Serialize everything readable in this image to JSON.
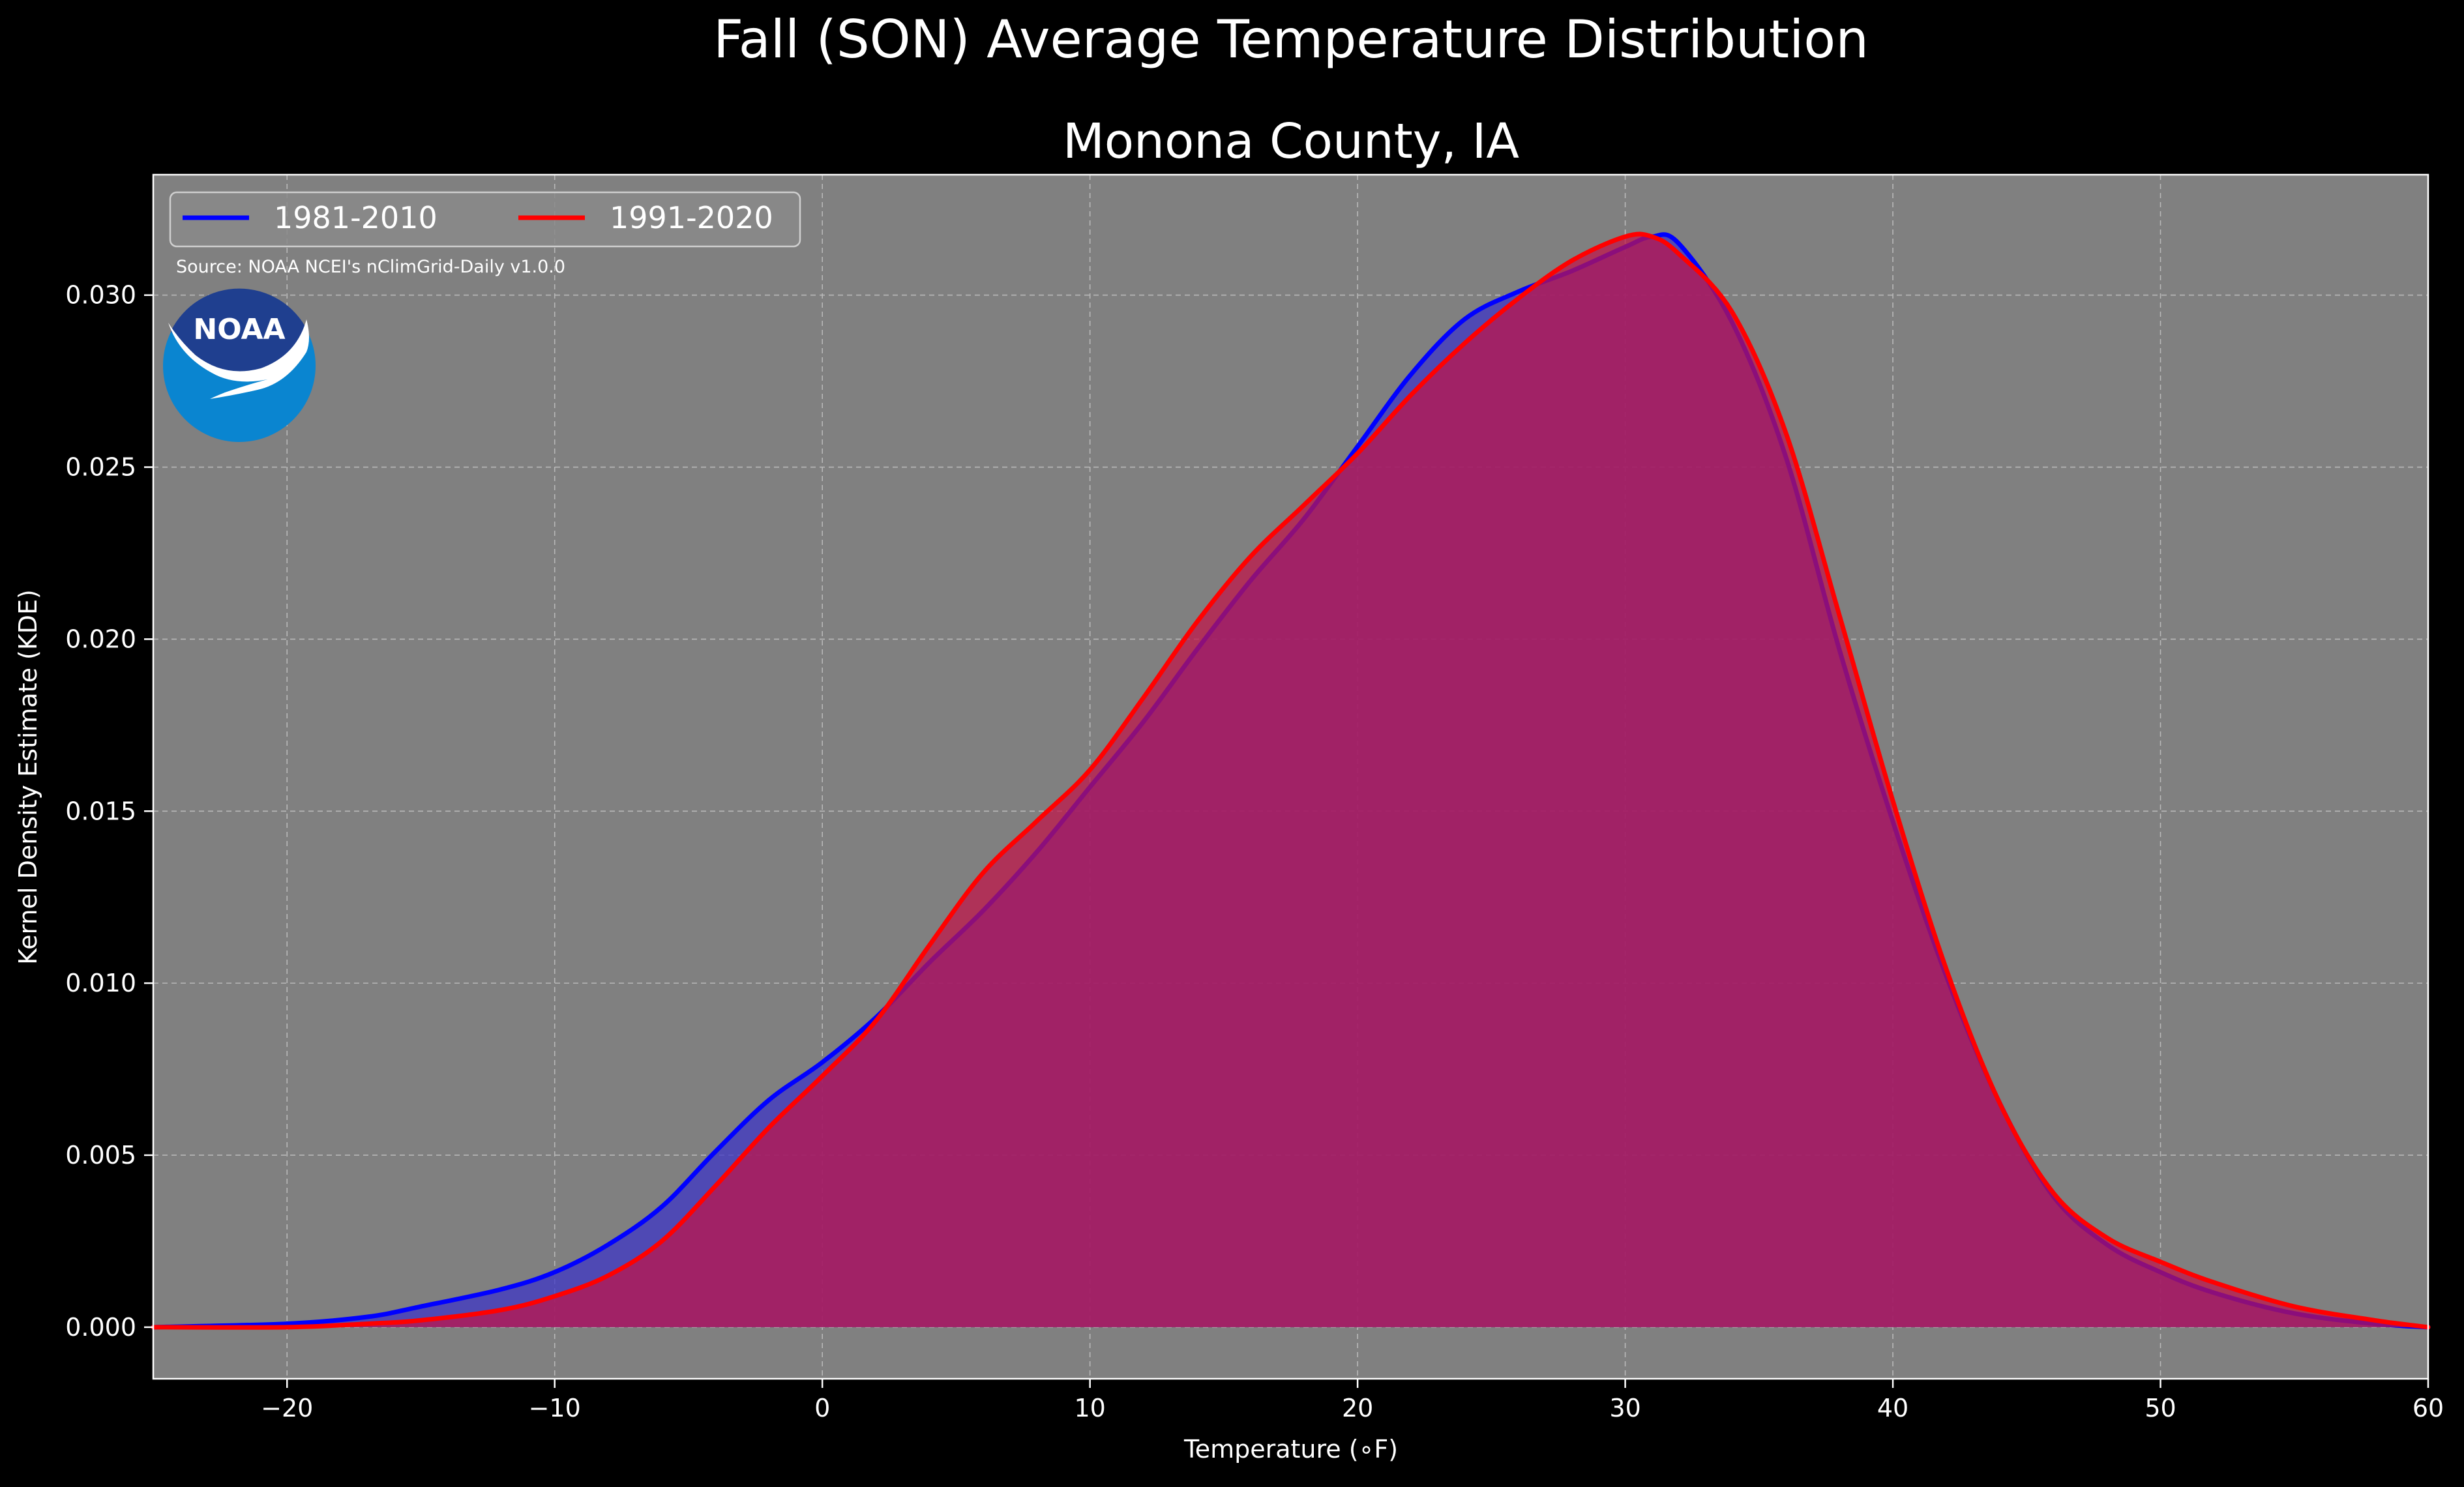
{
  "figure": {
    "background": "#000000",
    "suptitle": "Fall (SON) Average Temperature Distribution"
  },
  "chart_data": {
    "type": "area",
    "title": "Monona County, IA",
    "xlabel": "Temperature (∘F)",
    "ylabel": "Kernel Density Estimate (KDE)",
    "xlim": [
      -25,
      60
    ],
    "ylim": [
      -0.0015,
      0.0335
    ],
    "xticks": [
      -20,
      -10,
      0,
      10,
      20,
      30,
      40,
      50,
      60
    ],
    "xtick_labels": [
      "−20",
      "−10",
      "0",
      "10",
      "20",
      "30",
      "40",
      "50",
      "60"
    ],
    "yticks": [
      0.0,
      0.005,
      0.01,
      0.015,
      0.02,
      0.025,
      0.03
    ],
    "ytick_labels": [
      "0.000",
      "0.005",
      "0.010",
      "0.015",
      "0.020",
      "0.025",
      "0.030"
    ],
    "grid": true,
    "plot_background": "#808080",
    "legend_placement": "upper-left",
    "annotation": "Source: NOAA NCEI's nClimGrid-Daily v1.0.0",
    "logo": {
      "name": "noaa-logo",
      "text": "NOAA",
      "colors": {
        "sky": "#1f3f8f",
        "sea": "#0a85d0",
        "bird": "#ffffff"
      }
    },
    "x": [
      -25,
      -20,
      -17,
      -15,
      -12,
      -10,
      -8,
      -6,
      -4,
      -2,
      0,
      2,
      4,
      6,
      8,
      10,
      12,
      14,
      16,
      18,
      20,
      22,
      24,
      26,
      28,
      30,
      31,
      32,
      34,
      36,
      38,
      40,
      42,
      44,
      46,
      48,
      50,
      52,
      55,
      58,
      60
    ],
    "series": [
      {
        "name": "1981-2010",
        "color": "#0000ff",
        "fill": "#3b33c8",
        "values": [
          0.0,
          0.0001,
          0.0003,
          0.0006,
          0.0011,
          0.0016,
          0.0024,
          0.0035,
          0.0051,
          0.0066,
          0.0077,
          0.009,
          0.0106,
          0.0121,
          0.0138,
          0.0157,
          0.0176,
          0.0197,
          0.0217,
          0.0235,
          0.0256,
          0.0277,
          0.0293,
          0.0301,
          0.0307,
          0.0314,
          0.0317,
          0.0315,
          0.0292,
          0.0253,
          0.0197,
          0.0147,
          0.0102,
          0.0065,
          0.0038,
          0.0024,
          0.0016,
          0.001,
          0.0004,
          0.0001,
          0.0
        ]
      },
      {
        "name": "1991-2020",
        "color": "#ff0000",
        "fill": "#c01448",
        "values": [
          0.0,
          0.0,
          0.0001,
          0.0002,
          0.0005,
          0.0009,
          0.0015,
          0.0025,
          0.0041,
          0.0058,
          0.0073,
          0.0089,
          0.0111,
          0.0132,
          0.0147,
          0.0162,
          0.0183,
          0.0205,
          0.0224,
          0.0239,
          0.0254,
          0.0271,
          0.0286,
          0.0299,
          0.031,
          0.0317,
          0.0317,
          0.0312,
          0.0295,
          0.026,
          0.0207,
          0.0153,
          0.0104,
          0.0065,
          0.0039,
          0.0026,
          0.0019,
          0.0013,
          0.0006,
          0.0002,
          0.0
        ]
      }
    ]
  }
}
